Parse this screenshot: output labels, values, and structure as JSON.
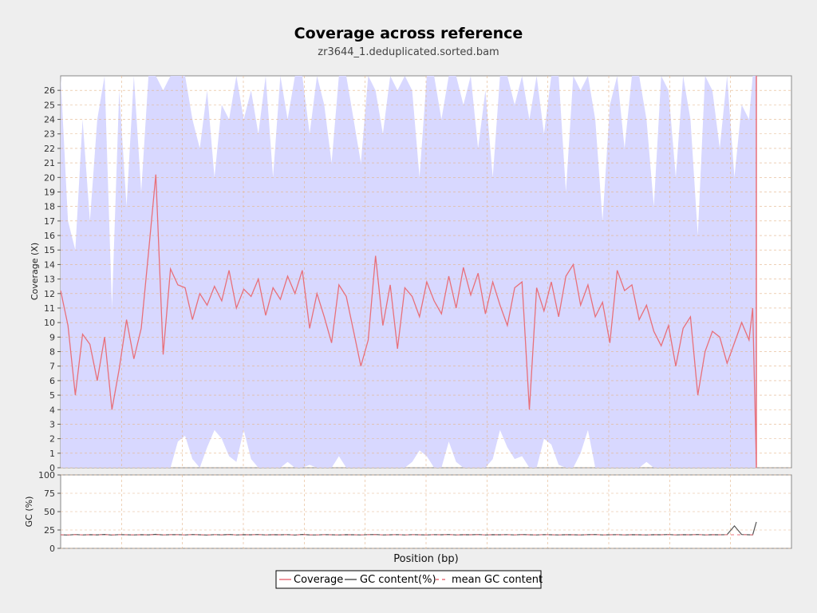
{
  "chart_data": [
    {
      "type": "line",
      "title": "Coverage across reference",
      "subtitle": "zr3644_1.deduplicated.sorted.bam",
      "xlabel": "Position (bp)",
      "ylabel": "Coverage (X)",
      "ylim": [
        0,
        27
      ],
      "xlim": [
        0,
        1
      ],
      "yticks": [
        "0",
        "1",
        "2",
        "3",
        "4",
        "5",
        "6",
        "7",
        "8",
        "9",
        "10",
        "11",
        "12",
        "13",
        "14",
        "15",
        "16",
        "17",
        "18",
        "19",
        "20",
        "21",
        "22",
        "23",
        "24",
        "25",
        "26"
      ],
      "xtick_labels": [],
      "grid": true,
      "x": [
        0.0,
        0.01,
        0.02,
        0.03,
        0.04,
        0.05,
        0.06,
        0.07,
        0.08,
        0.09,
        0.1,
        0.11,
        0.12,
        0.13,
        0.14,
        0.15,
        0.16,
        0.17,
        0.18,
        0.19,
        0.2,
        0.21,
        0.22,
        0.23,
        0.24,
        0.25,
        0.26,
        0.27,
        0.28,
        0.29,
        0.3,
        0.31,
        0.32,
        0.33,
        0.34,
        0.35,
        0.36,
        0.37,
        0.38,
        0.39,
        0.4,
        0.41,
        0.42,
        0.43,
        0.44,
        0.45,
        0.46,
        0.47,
        0.48,
        0.49,
        0.5,
        0.51,
        0.52,
        0.53,
        0.54,
        0.55,
        0.56,
        0.57,
        0.58,
        0.59,
        0.6,
        0.61,
        0.62,
        0.63,
        0.64,
        0.65,
        0.66,
        0.67,
        0.68,
        0.69,
        0.7,
        0.71,
        0.72,
        0.73,
        0.74,
        0.75,
        0.76,
        0.77,
        0.78,
        0.79,
        0.8,
        0.81,
        0.82,
        0.83,
        0.84,
        0.85,
        0.86,
        0.87,
        0.88,
        0.89,
        0.9,
        0.91,
        0.92,
        0.93,
        0.94,
        0.945,
        0.95
      ],
      "series": [
        {
          "name": "Coverage",
          "color": "#e8707a",
          "values": [
            12.2,
            9.8,
            5.0,
            9.2,
            8.5,
            6.0,
            9.0,
            4.0,
            6.8,
            10.2,
            7.5,
            9.6,
            14.8,
            20.2,
            7.8,
            13.7,
            12.6,
            12.4,
            10.2,
            12.0,
            11.2,
            12.5,
            11.5,
            13.6,
            11.0,
            12.3,
            11.8,
            13.0,
            10.5,
            12.4,
            11.6,
            13.2,
            12.0,
            13.6,
            9.6,
            12.0,
            10.4,
            8.6,
            12.6,
            11.8,
            9.4,
            7.0,
            8.8,
            14.6,
            9.8,
            12.6,
            8.2,
            12.4,
            11.8,
            10.4,
            12.8,
            11.5,
            10.6,
            13.2,
            11.0,
            13.8,
            11.9,
            13.4,
            10.6,
            12.8,
            11.2,
            9.8,
            12.4,
            12.8,
            4.0,
            12.4,
            10.8,
            12.8,
            10.4,
            13.2,
            14.0,
            11.2,
            12.6,
            10.4,
            11.4,
            8.6,
            13.6,
            12.2,
            12.6,
            10.2,
            11.2,
            9.4,
            8.4,
            9.8,
            7.0,
            9.6,
            10.4,
            5.0,
            8.0,
            9.4,
            9.0,
            7.2,
            8.6,
            10.0,
            8.8,
            11.0,
            0.2
          ],
          "mean_gc": [
            18.5,
            18.4,
            18.3,
            18.6,
            18.5,
            18.4,
            18.7,
            18.5,
            18.4,
            18.6,
            18.5,
            18.4,
            18.6,
            18.8,
            18.4,
            18.5,
            18.6,
            18.4,
            18.7,
            18.5,
            18.4,
            18.6,
            18.5,
            18.7,
            18.4,
            18.6,
            18.5,
            18.7,
            18.4,
            18.6,
            18.5,
            18.6,
            18.4,
            18.7,
            18.5,
            18.4,
            18.6,
            18.5,
            18.4,
            18.6,
            18.5,
            18.4,
            18.6,
            18.7,
            18.4,
            18.5,
            18.6,
            18.4,
            18.6,
            18.5,
            18.4,
            18.6,
            18.5,
            18.7,
            18.4,
            18.6,
            18.5,
            18.7,
            18.4,
            18.6,
            18.5,
            18.6,
            18.4,
            18.7,
            18.5,
            18.4,
            18.6,
            18.5,
            18.4,
            18.6,
            18.5,
            18.4,
            18.6,
            18.7,
            18.4,
            18.5,
            18.6,
            18.4,
            18.6,
            18.5,
            18.4,
            18.6,
            18.5,
            18.7,
            18.4,
            18.6,
            18.5,
            18.7,
            18.4,
            18.6,
            18.5,
            18.6,
            18.4,
            18.7,
            18.5,
            18.4,
            18.6
          ]
        },
        {
          "name": "Coverage upper band",
          "color": "#d8d8ff",
          "values": [
            27,
            17,
            15,
            24,
            17,
            24,
            27,
            11,
            26,
            18,
            27,
            19,
            27,
            27,
            26,
            27,
            27,
            27,
            24,
            22,
            26,
            20,
            25,
            24,
            27,
            24,
            26,
            23,
            27,
            20,
            27,
            24,
            27,
            27,
            23,
            27,
            25,
            21,
            27,
            27,
            24,
            21,
            27,
            26,
            23,
            27,
            26,
            27,
            26,
            20,
            27,
            27,
            24,
            27,
            27,
            25,
            27,
            22,
            26,
            20,
            27,
            27,
            25,
            27,
            24,
            27,
            23,
            27,
            27,
            19,
            27,
            26,
            27,
            24,
            17,
            25,
            27,
            22,
            27,
            27,
            24,
            18,
            27,
            26,
            20,
            27,
            24,
            16,
            27,
            26,
            22,
            27,
            20,
            25,
            24,
            27,
            27
          ]
        },
        {
          "name": "Coverage lower band",
          "color": "#d8d8ff",
          "values": [
            0,
            0,
            0,
            0,
            0,
            0,
            0,
            0,
            0,
            0,
            0,
            0,
            0,
            0,
            0,
            0,
            1.8,
            2.2,
            0.6,
            0,
            1.4,
            2.6,
            2.0,
            0.8,
            0.4,
            2.6,
            0.6,
            0,
            0,
            0,
            0,
            0.4,
            0,
            0,
            0.2,
            0,
            0,
            0,
            0.8,
            0,
            0,
            0,
            0,
            0,
            0,
            0,
            0,
            0,
            0.4,
            1.2,
            0.8,
            0,
            0,
            1.8,
            0.4,
            0,
            0,
            0,
            0,
            0.6,
            2.6,
            1.4,
            0.6,
            0.8,
            0,
            0,
            2.0,
            1.6,
            0.2,
            0,
            0,
            1.0,
            2.6,
            0,
            0,
            0,
            0,
            0,
            0,
            0,
            0.4,
            0,
            0,
            0,
            0,
            0,
            0,
            0,
            0,
            0,
            0,
            0,
            0,
            0,
            0,
            0,
            0
          ]
        }
      ],
      "legend_placement": "bottom-center"
    },
    {
      "type": "line",
      "xlabel": "",
      "ylabel": "GC (%)",
      "ylim": [
        0,
        100
      ],
      "yticks": [
        "0",
        "25",
        "50",
        "75",
        "100"
      ],
      "grid": true,
      "series": [
        {
          "name": "GC content(%)",
          "color": "#555555",
          "values": [
            18.5,
            18.2,
            18.8,
            18.3,
            18.6,
            18.4,
            18.9,
            18.2,
            18.7,
            18.5,
            18.3,
            18.6,
            18.4,
            19.0,
            18.3,
            18.6,
            18.7,
            18.3,
            18.8,
            18.5,
            18.2,
            18.7,
            18.4,
            18.9,
            18.3,
            18.6,
            18.5,
            18.8,
            18.3,
            18.6,
            18.5,
            18.7,
            18.2,
            18.9,
            18.4,
            18.3,
            18.7,
            18.5,
            18.3,
            18.6,
            18.5,
            18.3,
            18.7,
            18.8,
            18.3,
            18.5,
            18.7,
            18.3,
            18.7,
            18.5,
            18.3,
            18.7,
            18.5,
            18.8,
            18.3,
            18.6,
            18.5,
            18.8,
            18.3,
            18.6,
            18.5,
            18.7,
            18.3,
            18.8,
            18.5,
            18.3,
            18.7,
            18.5,
            18.3,
            18.6,
            18.5,
            18.3,
            18.6,
            18.8,
            18.3,
            18.5,
            18.7,
            18.3,
            18.6,
            18.5,
            18.3,
            18.6,
            18.5,
            18.8,
            18.3,
            18.6,
            18.5,
            18.8,
            18.3,
            18.6,
            18.5,
            18.7,
            30.5,
            18.8,
            18.5,
            18.4,
            36.0
          ]
        },
        {
          "name": "mean GC content",
          "color": "#e8707a",
          "values": [
            18.5,
            18.5,
            18.5,
            18.5,
            18.5,
            18.5,
            18.5,
            18.5,
            18.5,
            18.5,
            18.5,
            18.5,
            18.5,
            18.5,
            18.5,
            18.5,
            18.5,
            18.5,
            18.5,
            18.5,
            18.5,
            18.5,
            18.5,
            18.5,
            18.5,
            18.5,
            18.5,
            18.5,
            18.5,
            18.5,
            18.5,
            18.5,
            18.5,
            18.5,
            18.5,
            18.5,
            18.5,
            18.5,
            18.5,
            18.5,
            18.5,
            18.5,
            18.5,
            18.5,
            18.5,
            18.5,
            18.5,
            18.5,
            18.5,
            18.5,
            18.5,
            18.5,
            18.5,
            18.5,
            18.5,
            18.5,
            18.5,
            18.5,
            18.5,
            18.5,
            18.5,
            18.5,
            18.5,
            18.5,
            18.5,
            18.5,
            18.5,
            18.5,
            18.5,
            18.5,
            18.5,
            18.5,
            18.5,
            18.5,
            18.5,
            18.5,
            18.5,
            18.5,
            18.5,
            18.5,
            18.5,
            18.5,
            18.5,
            18.5,
            18.5,
            18.5,
            18.5,
            18.5,
            18.5,
            18.5,
            18.5,
            18.5,
            18.5,
            18.5,
            18.5,
            18.5,
            18.5
          ]
        }
      ]
    }
  ],
  "legend": {
    "items": [
      {
        "label": "Coverage",
        "color": "#e8707a",
        "style": "solid"
      },
      {
        "label": "GC content(%)",
        "color": "#555555",
        "style": "solid"
      },
      {
        "label": "mean GC content",
        "color": "#e8707a",
        "style": "dashed"
      }
    ]
  },
  "colors": {
    "background": "#eeeeee",
    "plot_background": "#ffffff",
    "band_fill": "#d8d8ff",
    "grid": "#e4b48a",
    "coverage_line": "#e8707a",
    "gc_line": "#555555",
    "mean_gc_line": "#e8707a"
  }
}
